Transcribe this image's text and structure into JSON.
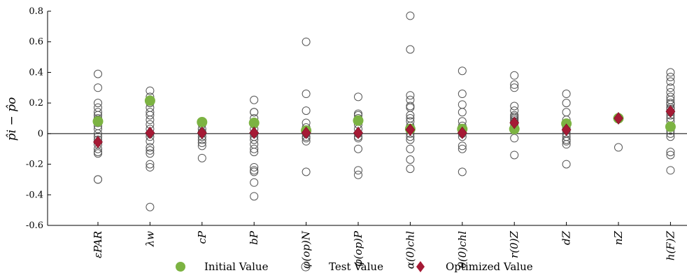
{
  "chart_data": {
    "type": "scatter",
    "ylabel": "p̂i − p̂o",
    "ylim": [
      -0.6,
      0.8
    ],
    "yticks": [
      "0.8",
      "0.6",
      "0.4",
      "0.2",
      "0",
      "-0.2",
      "-0.4",
      "-0.6"
    ],
    "ytick_values": [
      0.8,
      0.6,
      0.4,
      0.2,
      0,
      -0.2,
      -0.4,
      -0.6
    ],
    "categories": [
      "εPAR",
      "λw",
      "cP",
      "bP",
      "φ(op)N",
      "φ(op)P",
      "α(0)chl",
      "θ(0)chl",
      "r(0)Z",
      "dZ",
      "nZ",
      "h(F)Z"
    ],
    "grid": false,
    "legend_position": "bottom",
    "series": [
      {
        "name": "Initial Value",
        "color": "#7cb342",
        "marker": "filled-circle",
        "values": [
          0.08,
          0.215,
          0.075,
          0.07,
          0.02,
          0.085,
          0.03,
          0.03,
          0.03,
          0.065,
          0.1,
          0.045
        ]
      },
      {
        "name": "Test Value",
        "color": "#555555",
        "marker": "open-circle",
        "points": [
          [
            0.39,
            0.3,
            0.2,
            0.17,
            0.14,
            0.12,
            0.1,
            0.09,
            0.07,
            0.05,
            0.03,
            0.0,
            -0.02,
            -0.04,
            -0.07,
            -0.1,
            -0.12,
            -0.13,
            -0.3,
            -0.3
          ],
          [
            0.28,
            0.24,
            0.2,
            0.17,
            0.14,
            0.12,
            0.09,
            0.06,
            0.03,
            0.0,
            -0.02,
            -0.05,
            -0.09,
            -0.11,
            -0.13,
            -0.2,
            -0.22,
            -0.48
          ],
          [
            0.06,
            0.03,
            0.01,
            0.0,
            -0.02,
            -0.04,
            -0.06,
            -0.08,
            -0.16
          ],
          [
            0.22,
            0.14,
            0.14,
            0.1,
            0.06,
            0.03,
            0.0,
            -0.02,
            -0.04,
            -0.07,
            -0.1,
            -0.12,
            -0.22,
            -0.24,
            -0.25,
            -0.32,
            -0.41
          ],
          [
            0.6,
            0.26,
            0.15,
            0.07,
            0.04,
            0.0,
            -0.02,
            -0.03,
            -0.05,
            -0.25
          ],
          [
            0.24,
            0.13,
            0.12,
            0.1,
            0.08,
            0.06,
            0.03,
            0.0,
            -0.02,
            -0.03,
            -0.1,
            -0.24,
            -0.27
          ],
          [
            0.77,
            0.55,
            0.25,
            0.22,
            0.18,
            0.17,
            0.12,
            0.1,
            0.08,
            0.05,
            0.03,
            0.0,
            -0.02,
            -0.04,
            -0.1,
            -0.17,
            -0.23
          ],
          [
            0.41,
            0.26,
            0.19,
            0.14,
            0.08,
            0.05,
            0.02,
            0.0,
            -0.02,
            -0.08,
            -0.1,
            -0.25
          ],
          [
            0.38,
            0.32,
            0.3,
            0.18,
            0.15,
            0.12,
            0.11,
            0.1,
            0.09,
            0.08,
            0.07,
            0.05,
            -0.03,
            -0.14
          ],
          [
            0.26,
            0.2,
            0.14,
            0.09,
            0.06,
            0.04,
            0.02,
            0.0,
            -0.02,
            -0.04,
            -0.05,
            -0.07,
            -0.2
          ],
          [
            0.1,
            0.1,
            -0.09
          ],
          [
            0.4,
            0.37,
            0.34,
            0.3,
            0.27,
            0.24,
            0.22,
            0.2,
            0.19,
            0.17,
            0.16,
            0.14,
            0.12,
            0.1,
            0.08,
            0.05,
            0.02,
            0.0,
            -0.02,
            -0.12,
            -0.14,
            -0.24
          ]
        ]
      },
      {
        "name": "Optimized Value",
        "color": "#a51a35",
        "marker": "diamond",
        "values": [
          -0.055,
          0.005,
          0.005,
          0.005,
          0.005,
          0.005,
          0.025,
          0.005,
          0.07,
          0.025,
          0.1,
          0.145
        ]
      }
    ]
  }
}
